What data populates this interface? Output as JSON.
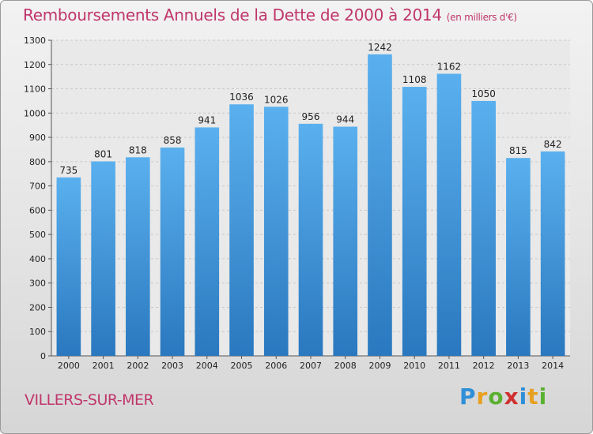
{
  "title": "Remboursements Annuels de la Dette de 2000 à 2014",
  "subtitle": "(en milliers d'€)",
  "city": "VILLERS-SUR-MER",
  "logo": {
    "letters": [
      "P",
      "r",
      "o",
      "x",
      "i",
      "t",
      "i"
    ],
    "colors": [
      "#2f8fd8",
      "#e8a020",
      "#5ab030",
      "#d03030",
      "#2f8fd8",
      "#e8a020",
      "#5ab030"
    ]
  },
  "chart_data": {
    "type": "bar",
    "categories": [
      "2000",
      "2001",
      "2002",
      "2003",
      "2004",
      "2005",
      "2006",
      "2007",
      "2008",
      "2009",
      "2010",
      "2011",
      "2012",
      "2013",
      "2014"
    ],
    "values": [
      735,
      801,
      818,
      858,
      941,
      1036,
      1026,
      956,
      944,
      1242,
      1108,
      1162,
      1050,
      815,
      842
    ],
    "title": "Remboursements Annuels de la Dette de 2000 à 2014",
    "ylim": [
      0,
      1300
    ],
    "yticks": [
      0,
      100,
      200,
      300,
      400,
      500,
      600,
      700,
      800,
      900,
      1000,
      1100,
      1200,
      1300
    ],
    "grid": true,
    "bar_color": "#3f95d8"
  }
}
